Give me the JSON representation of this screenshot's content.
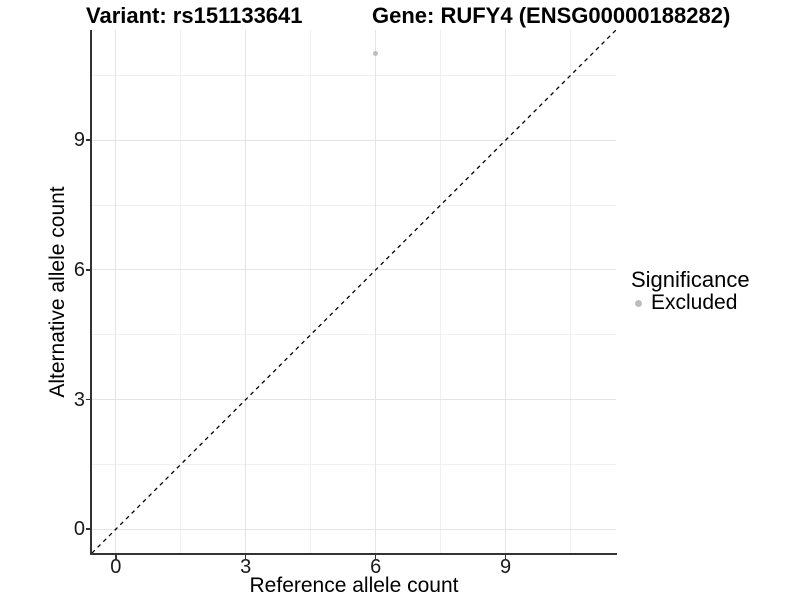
{
  "figure": {
    "title_left": "Variant: rs151133641",
    "title_right": "Gene: RUFY4 (ENSG00000188282)"
  },
  "axes": {
    "x": {
      "title": "Reference allele count"
    },
    "y": {
      "title": "Alternative allele count"
    }
  },
  "legend": {
    "title": "Significance",
    "items": [
      {
        "label": "Excluded",
        "color": "#bdbdbd"
      }
    ]
  },
  "colors": {
    "grid_major": "#e4e4e4",
    "grid_minor": "#f0f0f0",
    "axis_line": "#333333",
    "tick_text": "#1a1a1a",
    "point": "#bdbdbd",
    "reference_line": "#000000"
  },
  "chart_data": {
    "type": "scatter",
    "title": "Variant: rs151133641 | Gene: RUFY4 (ENSG00000188282)",
    "xlabel": "Reference allele count",
    "ylabel": "Alternative allele count",
    "xlim": [
      -0.55,
      11.55
    ],
    "ylim": [
      -0.55,
      11.55
    ],
    "x_ticks": [
      0,
      3,
      6,
      9
    ],
    "y_ticks": [
      0,
      3,
      6,
      9
    ],
    "x_minor_ticks": [
      1.5,
      4.5,
      7.5,
      10.5
    ],
    "y_minor_ticks": [
      1.5,
      4.5,
      7.5,
      10.5
    ],
    "grid": true,
    "legend_position": "right",
    "series": [
      {
        "name": "Excluded",
        "color": "#bdbdbd",
        "points": [
          {
            "x": 6,
            "y": 11
          }
        ]
      }
    ],
    "reference_line": {
      "type": "identity",
      "slope": 1,
      "intercept": 0,
      "style": "dashed",
      "color": "#000000"
    }
  }
}
